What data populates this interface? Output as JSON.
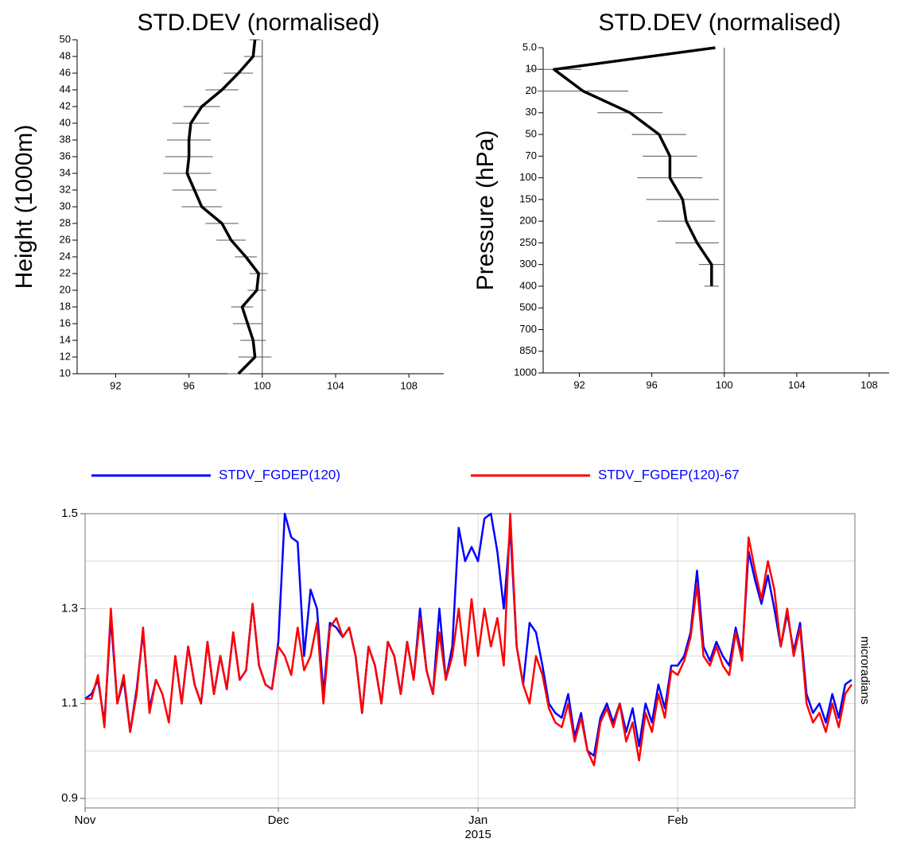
{
  "chart_data": [
    {
      "type": "profile",
      "title": "STD.DEV (normalised)",
      "ylabel": "Height (1000m)",
      "y": [
        10,
        12,
        14,
        16,
        18,
        20,
        22,
        24,
        26,
        28,
        30,
        32,
        34,
        36,
        38,
        40,
        42,
        44,
        46,
        48,
        50
      ],
      "values": [
        98.7,
        99.6,
        99.5,
        99.2,
        98.9,
        99.7,
        99.8,
        99.1,
        98.3,
        97.8,
        96.7,
        96.3,
        95.9,
        96.0,
        96.0,
        96.1,
        96.7,
        97.8,
        98.7,
        99.5,
        99.6
      ],
      "errors": [
        0.6,
        0.9,
        0.7,
        0.8,
        0.6,
        0.5,
        0.5,
        0.6,
        0.8,
        0.9,
        1.1,
        1.2,
        1.3,
        1.3,
        1.2,
        1.0,
        1.0,
        0.9,
        0.8,
        0.5,
        0.3
      ],
      "xlim": [
        89.9,
        109.9
      ],
      "xticks": [
        92,
        96,
        100,
        104,
        108
      ],
      "ylim": [
        10,
        50
      ],
      "yticks": [
        10,
        12,
        14,
        16,
        18,
        20,
        22,
        24,
        26,
        28,
        30,
        32,
        34,
        36,
        38,
        40,
        42,
        44,
        46,
        48,
        50
      ],
      "reference": 100,
      "color": "#000000"
    },
    {
      "type": "profile",
      "title": "STD.DEV (normalised)",
      "ylabel": "Pressure (hPa)",
      "categories": [
        "5.0",
        "10",
        "20",
        "30",
        "50",
        "70",
        "100",
        "150",
        "200",
        "250",
        "300",
        "400",
        "500",
        "700",
        "850",
        "1000"
      ],
      "values": [
        99.5,
        90.6,
        92.2,
        94.8,
        96.4,
        97.0,
        97.0,
        97.7,
        97.9,
        98.5,
        99.3,
        99.3,
        null,
        null,
        null,
        null
      ],
      "errors": [
        0,
        1.5,
        2.5,
        1.8,
        1.5,
        1.5,
        1.8,
        2.0,
        1.6,
        1.2,
        0.7,
        0.4,
        null,
        null,
        null,
        null
      ],
      "xlim": [
        90.0,
        109.1
      ],
      "xticks": [
        92,
        96,
        100,
        104,
        108
      ],
      "reference": 100,
      "color": "#000000"
    },
    {
      "type": "line",
      "ylabel": "microradians",
      "xlim": [
        0,
        119.5
      ],
      "xticks": [
        {
          "value": 0,
          "label": "Nov"
        },
        {
          "value": 30,
          "label": "Dec"
        },
        {
          "value": 61,
          "label": "Jan",
          "sublabel": "2015"
        },
        {
          "value": 92,
          "label": "Feb"
        }
      ],
      "ylim": [
        0.88,
        1.5
      ],
      "yticks": [
        0.9,
        1.1,
        1.3,
        1.5
      ],
      "minor_grid": [
        1.0,
        1.2,
        1.4
      ],
      "legend_text_color": "#0000ff",
      "series": [
        {
          "name": "STDV_FGDEP(120)",
          "color": "#0000ff",
          "values": [
            1.11,
            1.12,
            1.15,
            1.06,
            1.28,
            1.1,
            1.15,
            1.04,
            1.13,
            1.25,
            1.09,
            1.15,
            null,
            null,
            1.2,
            1.1,
            1.22,
            1.14,
            1.1,
            1.23,
            1.12,
            1.2,
            1.13,
            1.25,
            1.15,
            1.17,
            1.31,
            1.18,
            1.14,
            1.13,
            1.23,
            1.5,
            1.45,
            1.44,
            1.2,
            1.34,
            1.3,
            1.12,
            1.27,
            1.26,
            1.24,
            1.26,
            1.2,
            1.08,
            1.22,
            1.18,
            1.1,
            1.23,
            1.2,
            1.12,
            1.23,
            1.15,
            1.3,
            1.17,
            1.12,
            1.3,
            1.15,
            1.22,
            1.47,
            1.4,
            1.43,
            1.4,
            1.49,
            1.5,
            1.42,
            1.3,
            1.47,
            1.22,
            1.14,
            1.27,
            1.25,
            1.18,
            1.1,
            1.08,
            1.07,
            1.12,
            1.03,
            1.08,
            1.0,
            0.99,
            1.07,
            1.1,
            1.06,
            1.1,
            1.04,
            1.09,
            1.01,
            1.1,
            1.06,
            1.14,
            1.09,
            1.18,
            1.18,
            1.2,
            1.25,
            1.38,
            1.22,
            1.19,
            1.23,
            1.2,
            1.18,
            1.26,
            1.2,
            1.42,
            1.36,
            1.31,
            1.37,
            1.3,
            1.22,
            1.29,
            1.21,
            1.27,
            1.12,
            1.08,
            1.1,
            1.06,
            1.12,
            1.07,
            1.14,
            1.15
          ]
        },
        {
          "name": "STDV_FGDEP(120)-67",
          "color": "#ff0000",
          "values": [
            1.11,
            1.11,
            1.16,
            1.05,
            1.3,
            1.1,
            1.16,
            1.04,
            1.12,
            1.26,
            1.08,
            1.15,
            1.12,
            1.06,
            1.2,
            1.1,
            1.22,
            1.14,
            1.1,
            1.23,
            1.12,
            1.2,
            1.13,
            1.25,
            1.15,
            1.17,
            1.31,
            1.18,
            1.14,
            1.13,
            1.22,
            1.2,
            1.16,
            1.26,
            1.17,
            1.2,
            1.27,
            1.1,
            1.26,
            1.28,
            1.24,
            1.26,
            1.2,
            1.08,
            1.22,
            1.18,
            1.1,
            1.23,
            1.2,
            1.12,
            1.23,
            1.15,
            1.28,
            1.17,
            1.12,
            1.25,
            1.15,
            1.2,
            1.3,
            1.18,
            1.32,
            1.2,
            1.3,
            1.22,
            1.28,
            1.18,
            1.5,
            1.22,
            1.14,
            1.1,
            1.2,
            1.16,
            1.09,
            1.06,
            1.05,
            1.1,
            1.02,
            1.07,
            1.0,
            0.97,
            1.06,
            1.09,
            1.05,
            1.1,
            1.02,
            1.06,
            0.98,
            1.08,
            1.04,
            1.12,
            1.07,
            1.17,
            1.16,
            1.19,
            1.24,
            1.35,
            1.2,
            1.18,
            1.22,
            1.18,
            1.16,
            1.25,
            1.19,
            1.45,
            1.38,
            1.32,
            1.4,
            1.34,
            1.22,
            1.3,
            1.2,
            1.26,
            1.1,
            1.06,
            1.08,
            1.04,
            1.1,
            1.05,
            1.12,
            1.14
          ]
        }
      ]
    }
  ]
}
